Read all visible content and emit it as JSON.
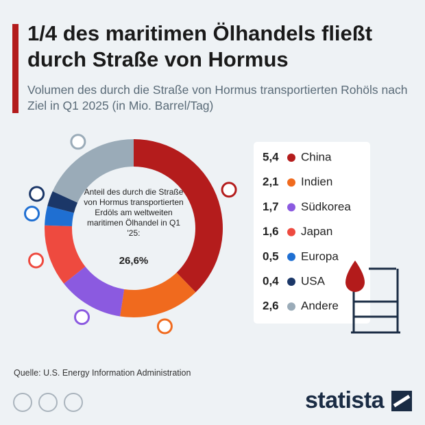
{
  "chart_data": {
    "type": "donut",
    "title": "1/4 des maritimen Ölhandels fließt durch Straße von Hormus",
    "subtitle": "Volumen des durch die Straße von Hormus transportierten Rohöls nach Ziel in Q1 2025 (in Mio. Barrel/Tag)",
    "categories": [
      "China",
      "Indien",
      "Südkorea",
      "Japan",
      "Europa",
      "USA",
      "Andere"
    ],
    "values": [
      5.4,
      2.1,
      1.7,
      1.6,
      0.5,
      0.4,
      2.6
    ],
    "value_labels": [
      "5,4",
      "2,1",
      "1,7",
      "1,6",
      "0,5",
      "0,4",
      "2,6"
    ],
    "colors": [
      "#b41c1c",
      "#f06a1e",
      "#8b5ae0",
      "#ee4a3f",
      "#1f6fd2",
      "#1b3768",
      "#9aabb8"
    ],
    "center_text": "Anteil des durch die Straße von Hormus transportierten Erdöls am weltweiten maritimen Ölhandel in Q1 '25:",
    "center_value": "26,6%",
    "source": "Quelle: U.S. Energy Information Administration",
    "brand": "statista"
  }
}
